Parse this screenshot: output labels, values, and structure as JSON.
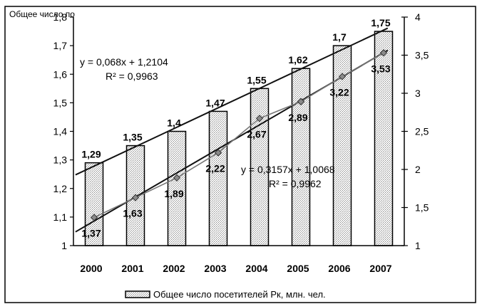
{
  "chart_data": {
    "type": "bar",
    "title": "Общее число по",
    "categories": [
      "2000",
      "2001",
      "2002",
      "2003",
      "2004",
      "2005",
      "2006",
      "2007"
    ],
    "series": [
      {
        "name": "Общее число посетителей Рк, млн. чел.",
        "type": "bar",
        "axis": "left",
        "values": [
          1.29,
          1.35,
          1.4,
          1.47,
          1.55,
          1.62,
          1.7,
          1.75
        ],
        "labels": [
          "1,29",
          "1,35",
          "1,4",
          "1,47",
          "1,55",
          "1,62",
          "1,7",
          "1,75"
        ]
      },
      {
        "type": "line",
        "axis": "right",
        "values": [
          1.37,
          1.63,
          1.89,
          2.22,
          2.67,
          2.89,
          3.22,
          3.53
        ],
        "labels": [
          "1,37",
          "1,63",
          "1,89",
          "2,22",
          "2,67",
          "2,89",
          "3,22",
          "3,53"
        ]
      }
    ],
    "trendlines": [
      {
        "series": 0,
        "equation": "y = 0,068x + 1,2104",
        "r2": "R² = 0,9963",
        "slope": 0.068,
        "intercept": 1.2104
      },
      {
        "series": 1,
        "equation": "y = 0,3157x + 1,0068",
        "r2": "R² = 0,9962",
        "slope": 0.3157,
        "intercept": 1.0068
      }
    ],
    "y_left": {
      "ylim": [
        1,
        1.8
      ],
      "ticks": [
        "1",
        "1,1",
        "1,2",
        "1,3",
        "1,4",
        "1,5",
        "1,6",
        "1,7",
        "1,8"
      ]
    },
    "y_right": {
      "ylim": [
        1,
        4
      ],
      "ticks": [
        "1",
        "1,5",
        "2",
        "2,5",
        "3",
        "3,5",
        "4"
      ]
    },
    "grid": false,
    "legend_position": "bottom",
    "legend": [
      "Общее число посетителей Рк, млн. чел."
    ]
  }
}
